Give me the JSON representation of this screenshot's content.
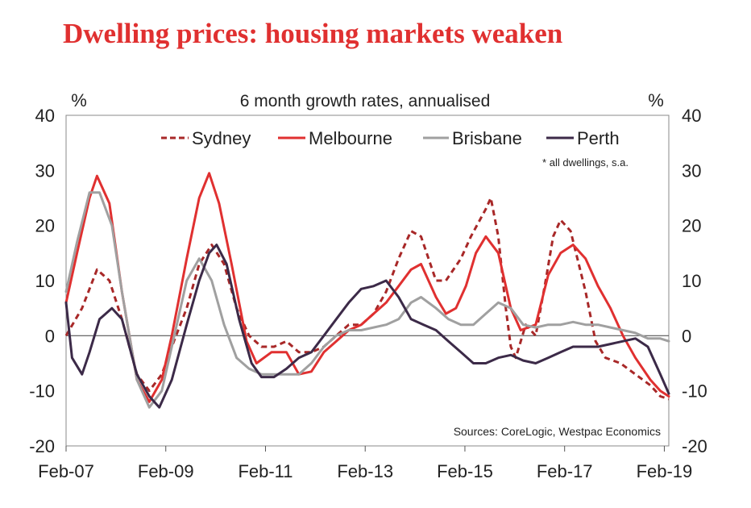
{
  "title": "Dwelling prices: housing markets weaken",
  "chart_data": {
    "type": "line",
    "subtitle": "6 month growth rates, annualised",
    "ylabel_left": "%",
    "ylabel_right": "%",
    "note": "* all dwellings, s.a.",
    "source": "Sources: CoreLogic, Westpac Economics",
    "ylim": [
      -20,
      40
    ],
    "yticks": [
      "40",
      "30",
      "20",
      "10",
      "0",
      "-10",
      "-20"
    ],
    "xlim": [
      2007.08,
      2019.17
    ],
    "xticks": [
      {
        "label": "Feb-07",
        "year": 2007.08
      },
      {
        "label": "Feb-09",
        "year": 2009.08
      },
      {
        "label": "Feb-11",
        "year": 2011.08
      },
      {
        "label": "Feb-13",
        "year": 2013.08
      },
      {
        "label": "Feb-15",
        "year": 2015.08
      },
      {
        "label": "Feb-17",
        "year": 2017.08
      },
      {
        "label": "Feb-19",
        "year": 2019.08
      }
    ],
    "zero_line": true,
    "grid": false,
    "legend_position": "top",
    "series": [
      {
        "name": "Sydney",
        "color": "#a82828",
        "style": "dashed",
        "points": [
          [
            2007.08,
            0
          ],
          [
            2007.4,
            5
          ],
          [
            2007.7,
            12
          ],
          [
            2007.95,
            10
          ],
          [
            2008.2,
            3
          ],
          [
            2008.5,
            -7
          ],
          [
            2008.75,
            -10
          ],
          [
            2009.0,
            -7
          ],
          [
            2009.2,
            -2
          ],
          [
            2009.5,
            5
          ],
          [
            2009.75,
            13
          ],
          [
            2010.0,
            16.5
          ],
          [
            2010.25,
            13
          ],
          [
            2010.5,
            5
          ],
          [
            2010.75,
            0
          ],
          [
            2011.0,
            -2
          ],
          [
            2011.25,
            -2
          ],
          [
            2011.5,
            -1
          ],
          [
            2011.75,
            -3
          ],
          [
            2012.0,
            -3
          ],
          [
            2012.25,
            -2
          ],
          [
            2012.5,
            0
          ],
          [
            2012.75,
            2
          ],
          [
            2013.0,
            2
          ],
          [
            2013.25,
            4
          ],
          [
            2013.5,
            8
          ],
          [
            2013.75,
            14
          ],
          [
            2014.0,
            19
          ],
          [
            2014.2,
            18
          ],
          [
            2014.5,
            10
          ],
          [
            2014.7,
            10
          ],
          [
            2015.0,
            14
          ],
          [
            2015.2,
            18
          ],
          [
            2015.5,
            23
          ],
          [
            2015.6,
            25
          ],
          [
            2015.75,
            18
          ],
          [
            2015.9,
            5
          ],
          [
            2016.0,
            -2
          ],
          [
            2016.1,
            -4
          ],
          [
            2016.3,
            2
          ],
          [
            2016.5,
            0
          ],
          [
            2016.7,
            10
          ],
          [
            2016.85,
            18
          ],
          [
            2017.0,
            21
          ],
          [
            2017.2,
            19
          ],
          [
            2017.5,
            8
          ],
          [
            2017.7,
            -1
          ],
          [
            2017.9,
            -4
          ],
          [
            2018.2,
            -5
          ],
          [
            2018.5,
            -7
          ],
          [
            2018.8,
            -9
          ],
          [
            2019.0,
            -11
          ],
          [
            2019.17,
            -11.5
          ]
        ]
      },
      {
        "name": "Melbourne",
        "color": "#e03030",
        "style": "solid",
        "points": [
          [
            2007.08,
            6
          ],
          [
            2007.3,
            15
          ],
          [
            2007.55,
            25
          ],
          [
            2007.7,
            29
          ],
          [
            2007.95,
            24
          ],
          [
            2008.2,
            8
          ],
          [
            2008.5,
            -8
          ],
          [
            2008.75,
            -12
          ],
          [
            2009.0,
            -8
          ],
          [
            2009.2,
            0
          ],
          [
            2009.5,
            14
          ],
          [
            2009.75,
            25
          ],
          [
            2009.95,
            29.5
          ],
          [
            2010.15,
            24
          ],
          [
            2010.4,
            13
          ],
          [
            2010.7,
            -1
          ],
          [
            2010.9,
            -5
          ],
          [
            2011.2,
            -3
          ],
          [
            2011.5,
            -3
          ],
          [
            2011.75,
            -7
          ],
          [
            2012.0,
            -6.5
          ],
          [
            2012.25,
            -3
          ],
          [
            2012.5,
            -1
          ],
          [
            2012.75,
            1
          ],
          [
            2013.0,
            2
          ],
          [
            2013.25,
            4
          ],
          [
            2013.5,
            6
          ],
          [
            2013.75,
            9
          ],
          [
            2014.0,
            12
          ],
          [
            2014.2,
            13
          ],
          [
            2014.5,
            7
          ],
          [
            2014.7,
            4
          ],
          [
            2014.9,
            5
          ],
          [
            2015.1,
            9
          ],
          [
            2015.3,
            15
          ],
          [
            2015.5,
            18
          ],
          [
            2015.75,
            15
          ],
          [
            2016.0,
            5
          ],
          [
            2016.2,
            1
          ],
          [
            2016.5,
            2
          ],
          [
            2016.75,
            11
          ],
          [
            2017.0,
            15
          ],
          [
            2017.25,
            16.5
          ],
          [
            2017.5,
            14
          ],
          [
            2017.75,
            9
          ],
          [
            2018.0,
            5
          ],
          [
            2018.25,
            0
          ],
          [
            2018.5,
            -4
          ],
          [
            2018.8,
            -8
          ],
          [
            2019.0,
            -10
          ],
          [
            2019.17,
            -11
          ]
        ]
      },
      {
        "name": "Brisbane",
        "color": "#a0a0a0",
        "style": "solid",
        "points": [
          [
            2007.08,
            8
          ],
          [
            2007.3,
            17
          ],
          [
            2007.55,
            26
          ],
          [
            2007.75,
            26
          ],
          [
            2008.0,
            20
          ],
          [
            2008.2,
            8
          ],
          [
            2008.5,
            -8
          ],
          [
            2008.75,
            -13
          ],
          [
            2009.0,
            -10
          ],
          [
            2009.2,
            -2
          ],
          [
            2009.5,
            10
          ],
          [
            2009.75,
            14
          ],
          [
            2010.0,
            10
          ],
          [
            2010.25,
            2
          ],
          [
            2010.5,
            -4
          ],
          [
            2010.75,
            -6
          ],
          [
            2011.0,
            -7
          ],
          [
            2011.5,
            -7
          ],
          [
            2011.75,
            -7
          ],
          [
            2012.0,
            -5
          ],
          [
            2012.25,
            -2
          ],
          [
            2012.5,
            0
          ],
          [
            2012.75,
            1
          ],
          [
            2013.0,
            1
          ],
          [
            2013.5,
            2
          ],
          [
            2013.75,
            3
          ],
          [
            2014.0,
            6
          ],
          [
            2014.2,
            7
          ],
          [
            2014.5,
            5
          ],
          [
            2014.75,
            3
          ],
          [
            2015.0,
            2
          ],
          [
            2015.25,
            2
          ],
          [
            2015.5,
            4
          ],
          [
            2015.75,
            6
          ],
          [
            2016.0,
            5
          ],
          [
            2016.25,
            2
          ],
          [
            2016.5,
            1.5
          ],
          [
            2016.75,
            2
          ],
          [
            2017.0,
            2
          ],
          [
            2017.25,
            2.5
          ],
          [
            2017.5,
            2
          ],
          [
            2017.75,
            2
          ],
          [
            2018.0,
            1.5
          ],
          [
            2018.25,
            1
          ],
          [
            2018.5,
            0.5
          ],
          [
            2018.75,
            -0.5
          ],
          [
            2019.0,
            -0.5
          ],
          [
            2019.17,
            -1
          ]
        ]
      },
      {
        "name": "Perth",
        "color": "#3c2a48",
        "style": "solid",
        "points": [
          [
            2007.08,
            6
          ],
          [
            2007.2,
            -4
          ],
          [
            2007.4,
            -7
          ],
          [
            2007.55,
            -3
          ],
          [
            2007.75,
            3
          ],
          [
            2008.0,
            5
          ],
          [
            2008.2,
            3
          ],
          [
            2008.5,
            -7
          ],
          [
            2008.75,
            -11
          ],
          [
            2008.95,
            -13
          ],
          [
            2009.2,
            -8
          ],
          [
            2009.5,
            2
          ],
          [
            2009.75,
            10
          ],
          [
            2009.95,
            15
          ],
          [
            2010.1,
            16.5
          ],
          [
            2010.3,
            13
          ],
          [
            2010.55,
            3
          ],
          [
            2010.8,
            -5
          ],
          [
            2011.0,
            -7.5
          ],
          [
            2011.25,
            -7.5
          ],
          [
            2011.5,
            -6
          ],
          [
            2011.75,
            -4
          ],
          [
            2012.0,
            -3
          ],
          [
            2012.25,
            0
          ],
          [
            2012.5,
            3
          ],
          [
            2012.75,
            6
          ],
          [
            2013.0,
            8.5
          ],
          [
            2013.25,
            9
          ],
          [
            2013.5,
            10
          ],
          [
            2013.75,
            7
          ],
          [
            2014.0,
            3
          ],
          [
            2014.25,
            2
          ],
          [
            2014.5,
            1
          ],
          [
            2014.75,
            -1
          ],
          [
            2015.0,
            -3
          ],
          [
            2015.25,
            -5
          ],
          [
            2015.5,
            -5
          ],
          [
            2015.75,
            -4
          ],
          [
            2016.0,
            -3.5
          ],
          [
            2016.25,
            -4.5
          ],
          [
            2016.5,
            -5
          ],
          [
            2016.75,
            -4
          ],
          [
            2017.0,
            -3
          ],
          [
            2017.25,
            -2
          ],
          [
            2017.5,
            -2
          ],
          [
            2017.75,
            -2
          ],
          [
            2018.0,
            -1.5
          ],
          [
            2018.25,
            -1
          ],
          [
            2018.5,
            -0.5
          ],
          [
            2018.75,
            -2
          ],
          [
            2019.0,
            -7
          ],
          [
            2019.17,
            -10.5
          ]
        ]
      }
    ]
  }
}
